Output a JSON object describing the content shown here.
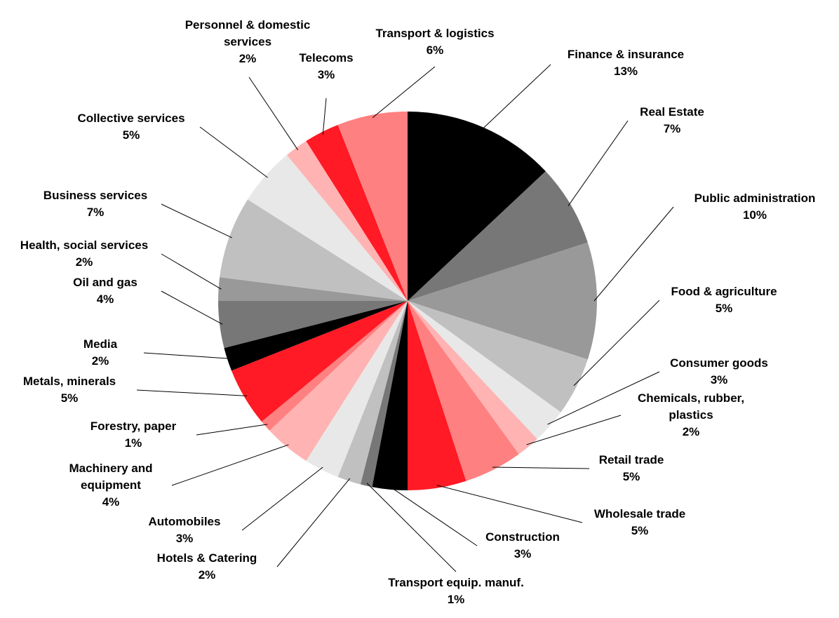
{
  "chart_data": {
    "type": "pie",
    "categories": [
      "Finance & insurance",
      "Real Estate",
      "Public administration",
      "Food & agriculture",
      "Consumer goods",
      "Chemicals, rubber, plastics",
      "Retail trade",
      "Wholesale trade",
      "Construction",
      "Transport equip. manuf.",
      "Hotels & Catering",
      "Automobiles",
      "Machinery and equipment",
      "Forestry, paper",
      "Metals, minerals",
      "Media",
      "Oil and gas",
      "Health, social services",
      "Business services",
      "Collective services",
      "Personnel & domestic services",
      "Telecoms",
      "Transport & logistics"
    ],
    "values": [
      13,
      7,
      10,
      5,
      3,
      2,
      5,
      5,
      3,
      1,
      2,
      3,
      4,
      1,
      5,
      2,
      4,
      2,
      7,
      5,
      2,
      3,
      6
    ],
    "value_labels": [
      "13%",
      "7%",
      "10%",
      "5%",
      "3%",
      "2%",
      "5%",
      "5%",
      "3%",
      "1%",
      "2%",
      "3%",
      "4%",
      "1%",
      "5%",
      "2%",
      "4%",
      "2%",
      "7%",
      "5%",
      "2%",
      "3%",
      "6%"
    ],
    "colors": [
      "#000000",
      "#777777",
      "#999999",
      "#c0c0c0",
      "#e8e8e8",
      "#ffb3b3",
      "#ff8080",
      "#ff1a25",
      "#000000",
      "#777777",
      "#c0c0c0",
      "#e8e8e8",
      "#ffb3b3",
      "#ff8080",
      "#ff1a25",
      "#000000",
      "#777777",
      "#999999",
      "#c0c0c0",
      "#e8e8e8",
      "#ffb3b3",
      "#ff1a25",
      "#ff8080"
    ]
  }
}
